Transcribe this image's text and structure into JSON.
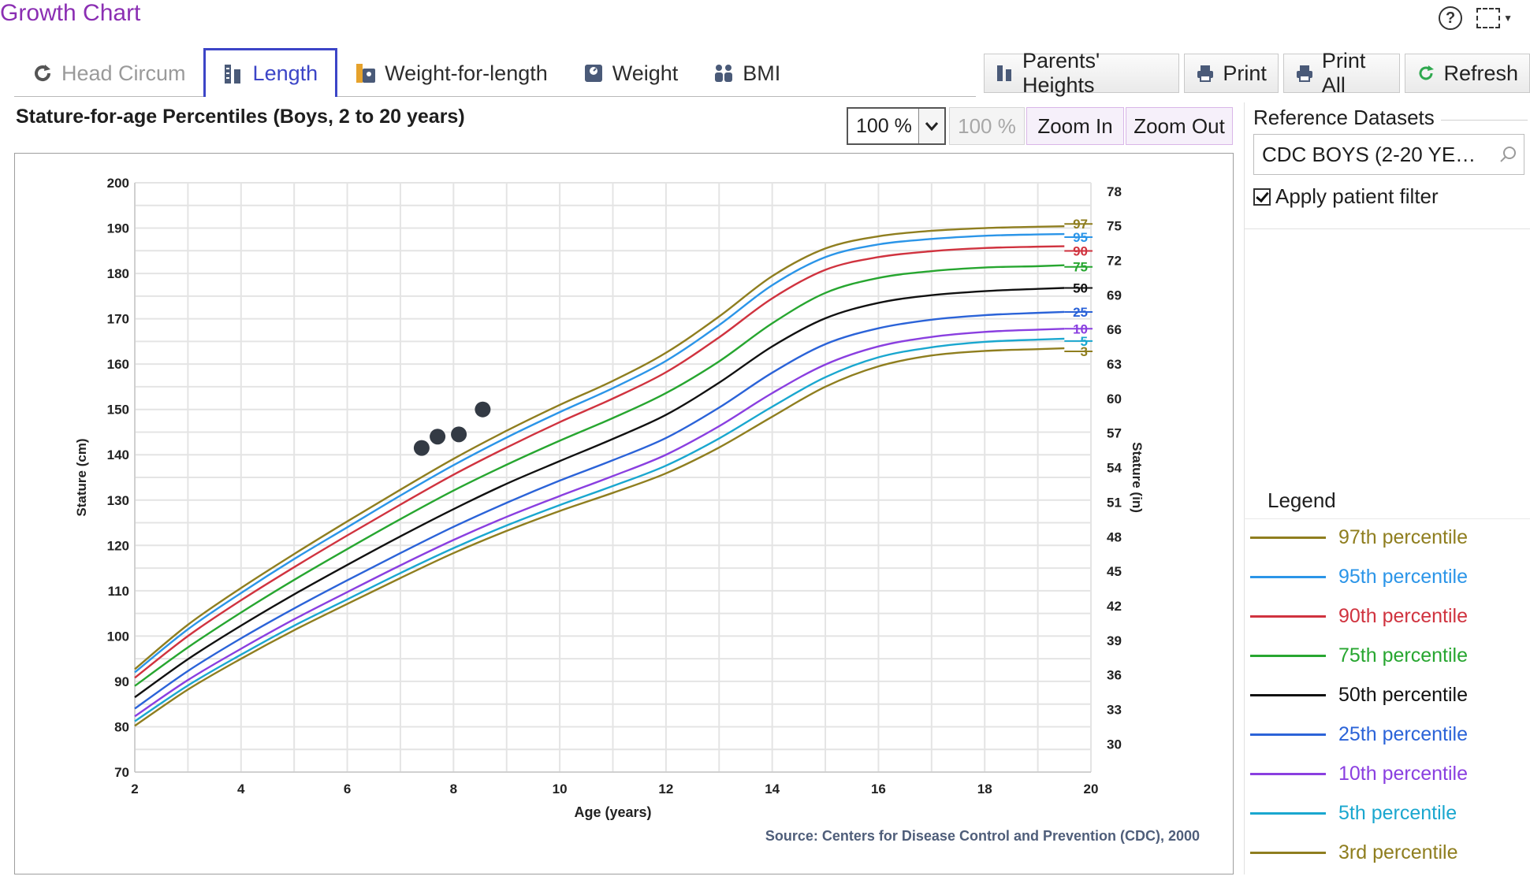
{
  "app": {
    "title": "Growth Chart"
  },
  "tabs": [
    {
      "label": "Head Circum",
      "state": "disabled",
      "icon": "refresh-head-icon"
    },
    {
      "label": "Length",
      "state": "active",
      "icon": "length-ruler-icon"
    },
    {
      "label": "Weight-for-length",
      "state": "normal",
      "icon": "weight-length-icon"
    },
    {
      "label": "Weight",
      "state": "normal",
      "icon": "scale-icon"
    },
    {
      "label": "BMI",
      "state": "normal",
      "icon": "people-icon"
    }
  ],
  "toolbar": {
    "parents_heights": "Parents' Heights",
    "print": "Print",
    "print_all": "Print All",
    "refresh": "Refresh"
  },
  "chart_header": {
    "title": "Stature-for-age Percentiles (Boys, 2 to 20 years)",
    "zoom_value": "100 %",
    "zoom_reset": "100 %",
    "zoom_in": "Zoom In",
    "zoom_out": "Zoom Out"
  },
  "side_panel": {
    "reference_label": "Reference Datasets",
    "reference_value": "CDC BOYS (2-20 YE…",
    "filter_label": "Apply patient filter",
    "filter_checked": true
  },
  "legend": {
    "title": "Legend",
    "items": [
      {
        "label": "97th percentile",
        "color": "#8f7e1f"
      },
      {
        "label": "95th percentile",
        "color": "#2b95e8"
      },
      {
        "label": "90th percentile",
        "color": "#d0333f"
      },
      {
        "label": "75th percentile",
        "color": "#27a630"
      },
      {
        "label": "50th percentile",
        "color": "#111111"
      },
      {
        "label": "25th percentile",
        "color": "#2b63d8"
      },
      {
        "label": "10th percentile",
        "color": "#8a3fe0"
      },
      {
        "label": "5th percentile",
        "color": "#1aa7cf"
      },
      {
        "label": "3rd percentile",
        "color": "#8f7e1f"
      }
    ]
  },
  "chart_data": {
    "type": "line",
    "xlabel": "Age (years)",
    "ylabel": "Stature (cm)",
    "y2label": "Stature (in)",
    "source": "Source: Centers for Disease Control and Prevention (CDC), 2000",
    "xlim": [
      2,
      20
    ],
    "ylim": [
      70,
      200
    ],
    "x_ticks": [
      2,
      4,
      6,
      8,
      10,
      12,
      14,
      16,
      18,
      20
    ],
    "y_ticks": [
      70,
      80,
      90,
      100,
      110,
      120,
      130,
      140,
      150,
      160,
      170,
      180,
      190,
      200
    ],
    "y2_ticks": [
      30,
      33,
      36,
      39,
      42,
      45,
      48,
      51,
      54,
      57,
      60,
      63,
      66,
      69,
      72,
      75,
      78
    ],
    "grid": true,
    "ages": [
      2,
      3,
      4,
      5,
      6,
      7,
      8,
      9,
      10,
      11,
      12,
      13,
      14,
      15,
      16,
      17,
      18,
      19,
      19.5
    ],
    "series": [
      {
        "name": "97",
        "color": "#8f7e1f",
        "values": [
          92.7,
          102.5,
          110.6,
          118.1,
          125.3,
          132.3,
          139.1,
          145.3,
          151.0,
          156.3,
          162.5,
          170.5,
          179.4,
          185.5,
          188.2,
          189.4,
          190.0,
          190.3,
          190.4
        ]
      },
      {
        "name": "95",
        "color": "#2b95e8",
        "values": [
          92.0,
          101.5,
          109.5,
          117.0,
          124.0,
          131.0,
          137.7,
          143.8,
          149.4,
          154.7,
          160.7,
          168.6,
          177.4,
          183.6,
          186.4,
          187.6,
          188.3,
          188.6,
          188.7
        ]
      },
      {
        "name": "90",
        "color": "#d0333f",
        "values": [
          90.8,
          100.0,
          107.9,
          115.2,
          122.2,
          129.0,
          135.6,
          141.6,
          147.2,
          152.4,
          158.2,
          165.9,
          174.5,
          180.8,
          183.6,
          184.9,
          185.6,
          185.9,
          186.0
        ]
      },
      {
        "name": "75",
        "color": "#27a630",
        "values": [
          89.0,
          97.5,
          105.2,
          112.4,
          119.2,
          125.8,
          132.1,
          137.8,
          143.1,
          148.1,
          153.6,
          160.6,
          169.0,
          175.7,
          179.0,
          180.5,
          181.3,
          181.6,
          181.8
        ]
      },
      {
        "name": "50",
        "color": "#111111",
        "values": [
          86.5,
          94.9,
          102.3,
          109.2,
          115.7,
          122.0,
          128.0,
          133.6,
          138.6,
          143.5,
          148.8,
          155.9,
          163.9,
          170.1,
          173.5,
          175.2,
          176.1,
          176.6,
          176.8
        ]
      },
      {
        "name": "25",
        "color": "#2b63d8",
        "values": [
          84.0,
          92.3,
          99.5,
          106.1,
          112.3,
          118.3,
          124.1,
          129.4,
          134.3,
          138.8,
          143.7,
          150.4,
          158.1,
          164.4,
          167.9,
          169.8,
          170.8,
          171.3,
          171.5
        ]
      },
      {
        "name": "10",
        "color": "#8a3fe0",
        "values": [
          82.3,
          90.3,
          97.2,
          103.7,
          109.7,
          115.6,
          121.2,
          126.3,
          130.9,
          135.3,
          140.0,
          146.3,
          153.6,
          159.9,
          163.9,
          166.0,
          167.1,
          167.6,
          167.8
        ]
      },
      {
        "name": "5",
        "color": "#1aa7cf",
        "values": [
          81.2,
          89.1,
          95.9,
          102.3,
          108.1,
          113.9,
          119.4,
          124.4,
          128.9,
          133.1,
          137.6,
          143.6,
          150.6,
          157.1,
          161.5,
          163.7,
          164.9,
          165.4,
          165.6
        ]
      },
      {
        "name": "3",
        "color": "#8f7e1f",
        "values": [
          80.2,
          88.2,
          95.0,
          101.3,
          107.1,
          112.8,
          118.3,
          123.2,
          127.6,
          131.6,
          135.9,
          141.6,
          148.4,
          155.0,
          159.5,
          161.9,
          162.9,
          163.3,
          163.5
        ]
      }
    ],
    "patient_points": [
      {
        "x": 7.4,
        "y": 141.5
      },
      {
        "x": 7.7,
        "y": 144.0
      },
      {
        "x": 8.1,
        "y": 144.5
      },
      {
        "x": 8.55,
        "y": 150.0
      }
    ]
  }
}
